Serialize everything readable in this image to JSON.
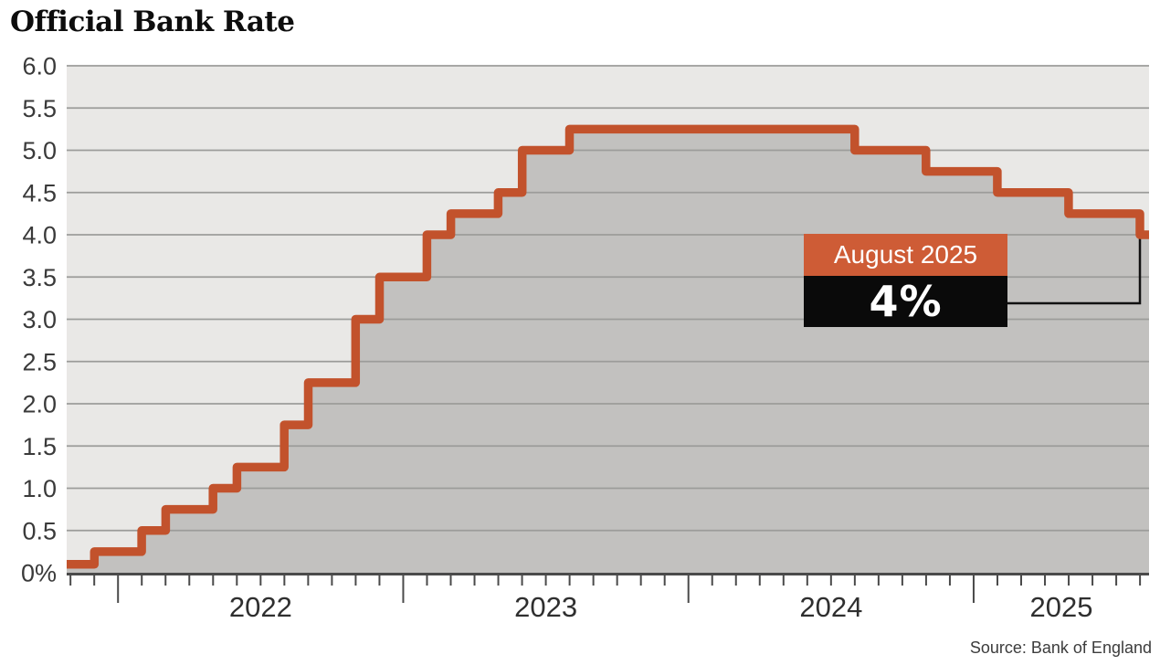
{
  "chart_data": {
    "type": "area",
    "title": "Official Bank Rate",
    "source": "Source: Bank of England",
    "ylim": [
      0,
      6
    ],
    "x_domain": [
      2021.82,
      2025.615
    ],
    "grid": true,
    "y_axis": [
      {
        "value": 6.0,
        "label": "6.0"
      },
      {
        "value": 5.5,
        "label": "5.5"
      },
      {
        "value": 5.0,
        "label": "5.0"
      },
      {
        "value": 4.5,
        "label": "4.5"
      },
      {
        "value": 4.0,
        "label": "4.0"
      },
      {
        "value": 3.5,
        "label": "3.5"
      },
      {
        "value": 3.0,
        "label": "3.0"
      },
      {
        "value": 2.5,
        "label": "2.5"
      },
      {
        "value": 2.0,
        "label": "2.0"
      },
      {
        "value": 1.5,
        "label": "1.5"
      },
      {
        "value": 1.0,
        "label": "1.0"
      },
      {
        "value": 0.5,
        "label": "0.5"
      },
      {
        "value": 0.0,
        "label": "0%"
      }
    ],
    "x_axis": {
      "years": [
        "2022",
        "2023",
        "2024",
        "2025"
      ]
    },
    "series": [
      {
        "date": "Nov 2021",
        "t": 2021.82,
        "rate": 0.1
      },
      {
        "date": "Dec 2021",
        "t": 2021.917,
        "rate": 0.25
      },
      {
        "date": "Feb 2022",
        "t": 2022.083,
        "rate": 0.5
      },
      {
        "date": "Mar 2022",
        "t": 2022.167,
        "rate": 0.75
      },
      {
        "date": "May 2022",
        "t": 2022.333,
        "rate": 1.0
      },
      {
        "date": "Jun 2022",
        "t": 2022.417,
        "rate": 1.25
      },
      {
        "date": "Aug 2022",
        "t": 2022.583,
        "rate": 1.75
      },
      {
        "date": "Sep 2022",
        "t": 2022.667,
        "rate": 2.25
      },
      {
        "date": "Nov 2022",
        "t": 2022.833,
        "rate": 3.0
      },
      {
        "date": "Dec 2022",
        "t": 2022.917,
        "rate": 3.5
      },
      {
        "date": "Feb 2023",
        "t": 2023.083,
        "rate": 4.0
      },
      {
        "date": "Mar 2023",
        "t": 2023.167,
        "rate": 4.25
      },
      {
        "date": "May 2023",
        "t": 2023.333,
        "rate": 4.5
      },
      {
        "date": "Jun 2023",
        "t": 2023.417,
        "rate": 5.0
      },
      {
        "date": "Aug 2023",
        "t": 2023.583,
        "rate": 5.25
      },
      {
        "date": "Aug 2024",
        "t": 2024.583,
        "rate": 5.0
      },
      {
        "date": "Nov 2024",
        "t": 2024.833,
        "rate": 4.75
      },
      {
        "date": "Feb 2025",
        "t": 2025.083,
        "rate": 4.5
      },
      {
        "date": "May 2025",
        "t": 2025.333,
        "rate": 4.25
      },
      {
        "date": "Aug 2025",
        "t": 2025.583,
        "rate": 4.0
      }
    ],
    "annotation": {
      "label": "August 2025",
      "value": "4%"
    },
    "colors": {
      "line": "#c2522c",
      "area_fill": "#c2c1bf",
      "plot_bg": "#e9e8e6",
      "grid": "#9c9c9a",
      "axis": "#4a4a4a",
      "tick_label": "#3a3a3a",
      "annotation_label_bg": "#ce5c36",
      "annotation_value_bg": "#0a0a0a",
      "annotation_text": "#ffffff",
      "connector": "#111111"
    }
  }
}
